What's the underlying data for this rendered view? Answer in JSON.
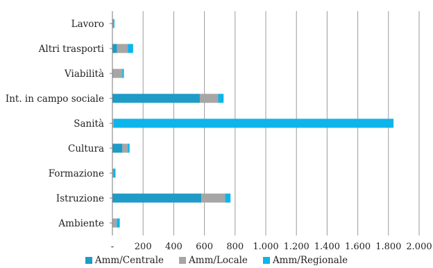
{
  "chart_data": {
    "type": "bar",
    "orientation": "horizontal",
    "stacked": true,
    "categories": [
      "Lavoro",
      "Altri trasporti",
      "Viabilità",
      "Int. in campo sociale",
      "Sanità",
      "Cultura",
      "Formazione",
      "Istruzione",
      "Ambiente"
    ],
    "series": [
      {
        "name": "Amm/Centrale",
        "color": "#1f9bc7",
        "values": [
          0,
          30,
          0,
          570,
          0,
          65,
          0,
          580,
          0
        ]
      },
      {
        "name": "Amm/Locale",
        "color": "#a6a6a6",
        "values": [
          5,
          70,
          65,
          120,
          8,
          35,
          5,
          155,
          28
        ]
      },
      {
        "name": "Amm/Regionale",
        "color": "#0db5ea",
        "values": [
          8,
          35,
          10,
          35,
          1825,
          12,
          15,
          35,
          20
        ]
      }
    ],
    "xticks": [
      "-",
      "200",
      "400",
      "600",
      "800",
      "1.000",
      "1.200",
      "1.400",
      "1.600",
      "1.800",
      "2.000"
    ],
    "xlim": [
      0,
      2000
    ],
    "grid": "vertical",
    "legend_position": "bottom"
  }
}
